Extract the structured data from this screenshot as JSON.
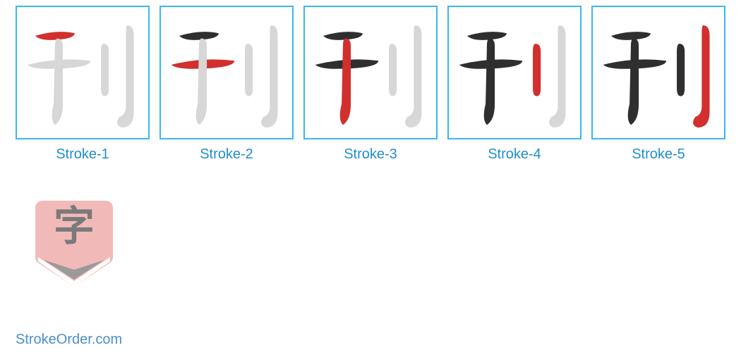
{
  "stroke_color_active": "#d22f2f",
  "stroke_color_done": "#2f2f2f",
  "stroke_color_pending": "#d7d7d7",
  "box_border_color": "#39b8ef",
  "label_color": "#1f8ecf",
  "background_color": "#ffffff",
  "watermark_color": "#4a8fc9",
  "logo_bg": "#f2b9b9",
  "logo_char_color": "#7a7a7a",
  "logo_tip_color": "#9a9a9a",
  "box_size": 190,
  "box_gap": 14,
  "border_width": 2,
  "label_fontsize": 20,
  "label_margin_top": 10,
  "watermark_fontsize": 20,
  "strokes": [
    {
      "label": "Stroke-1",
      "colors": [
        "active",
        "pending",
        "pending",
        "pending",
        "pending"
      ]
    },
    {
      "label": "Stroke-2",
      "colors": [
        "done",
        "active",
        "pending",
        "pending",
        "pending"
      ]
    },
    {
      "label": "Stroke-3",
      "colors": [
        "done",
        "done",
        "active",
        "pending",
        "pending"
      ]
    },
    {
      "label": "Stroke-4",
      "colors": [
        "done",
        "done",
        "done",
        "active",
        "pending"
      ]
    },
    {
      "label": "Stroke-5",
      "colors": [
        "done",
        "done",
        "done",
        "done",
        "active"
      ]
    }
  ],
  "logo_char": "字",
  "watermark_text": "StrokeOrder.com"
}
